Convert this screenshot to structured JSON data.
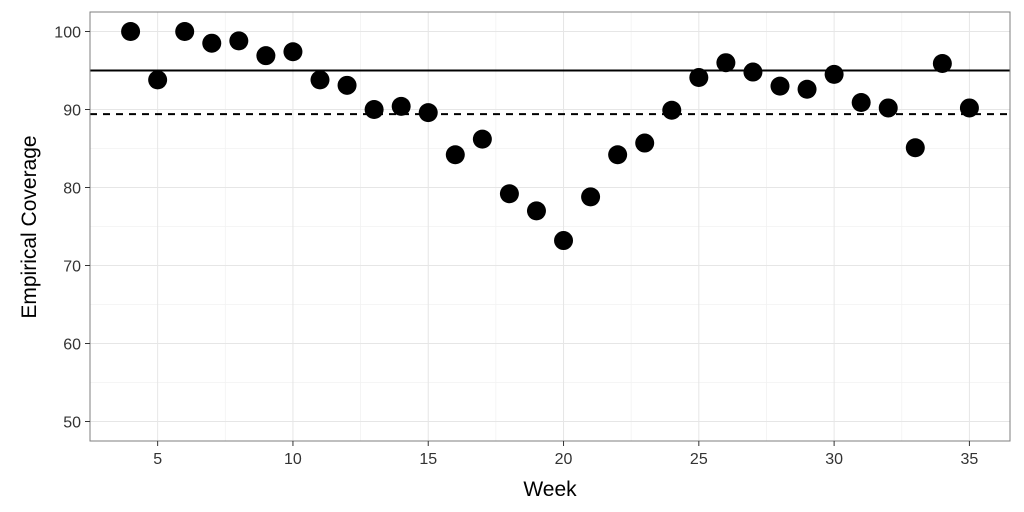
{
  "chart_data": {
    "type": "scatter",
    "title": "",
    "xlabel": "Week",
    "ylabel": "Empirical Coverage",
    "xlim": [
      2.5,
      36.5
    ],
    "ylim": [
      47.5,
      102.5
    ],
    "x_ticks": [
      5,
      10,
      15,
      20,
      25,
      30,
      35
    ],
    "y_ticks": [
      50,
      60,
      70,
      80,
      90,
      100
    ],
    "x_tick_labels": [
      "5",
      "10",
      "15",
      "20",
      "25",
      "30",
      "35"
    ],
    "y_tick_labels": [
      "50",
      "60",
      "70",
      "80",
      "90",
      "100"
    ],
    "grid": true,
    "reference_lines": [
      {
        "style": "solid",
        "y": 95
      },
      {
        "style": "dashed",
        "y": 89.4
      }
    ],
    "series": [
      {
        "x": [
          4,
          5,
          6,
          7,
          8,
          9,
          10,
          11,
          12,
          13,
          14,
          15,
          16,
          17,
          18,
          19,
          20,
          21,
          22,
          23,
          24,
          25,
          26,
          27,
          28,
          29,
          30,
          31,
          32,
          33,
          34,
          35
        ],
        "y": [
          100,
          93.8,
          100,
          98.5,
          98.8,
          96.9,
          97.4,
          93.8,
          93.1,
          90.0,
          90.4,
          89.6,
          84.2,
          86.2,
          79.2,
          77.0,
          73.2,
          78.8,
          84.2,
          85.7,
          89.9,
          94.1,
          96.0,
          94.8,
          93.0,
          92.6,
          94.5,
          90.9,
          90.2,
          85.1,
          95.9,
          90.2
        ]
      }
    ]
  }
}
